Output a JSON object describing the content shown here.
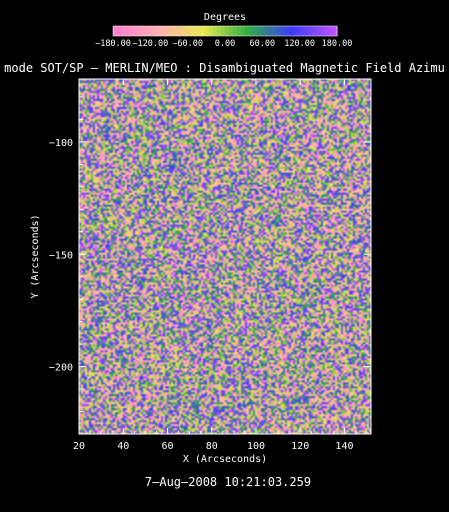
{
  "chart_data": {
    "type": "heatmap",
    "title": "mode SOT/SP — MERLIN/MEO : Disambiguated Magnetic Field Azimu",
    "xlabel": "X (Arcseconds)",
    "ylabel": "Y (Arcseconds)",
    "xlim": [
      20,
      152
    ],
    "ylim": [
      -230,
      -72
    ],
    "x_ticks": [
      20,
      40,
      60,
      80,
      100,
      120,
      140
    ],
    "y_ticks": [
      -100,
      -150,
      -200
    ],
    "colorbar": {
      "title": "Degrees",
      "range": [
        -180,
        180
      ],
      "tick_labels": [
        "−180.00",
        "−120.00",
        "−60.00",
        "0.00",
        "60.00",
        "120.00",
        "180.00"
      ],
      "colors": [
        "#ff7fd0",
        "#ffb0b0",
        "#e8e850",
        "#30b040",
        "#3c3cff",
        "#c050ff"
      ]
    },
    "footer": "7—Aug—2008  10:21:03.259"
  }
}
